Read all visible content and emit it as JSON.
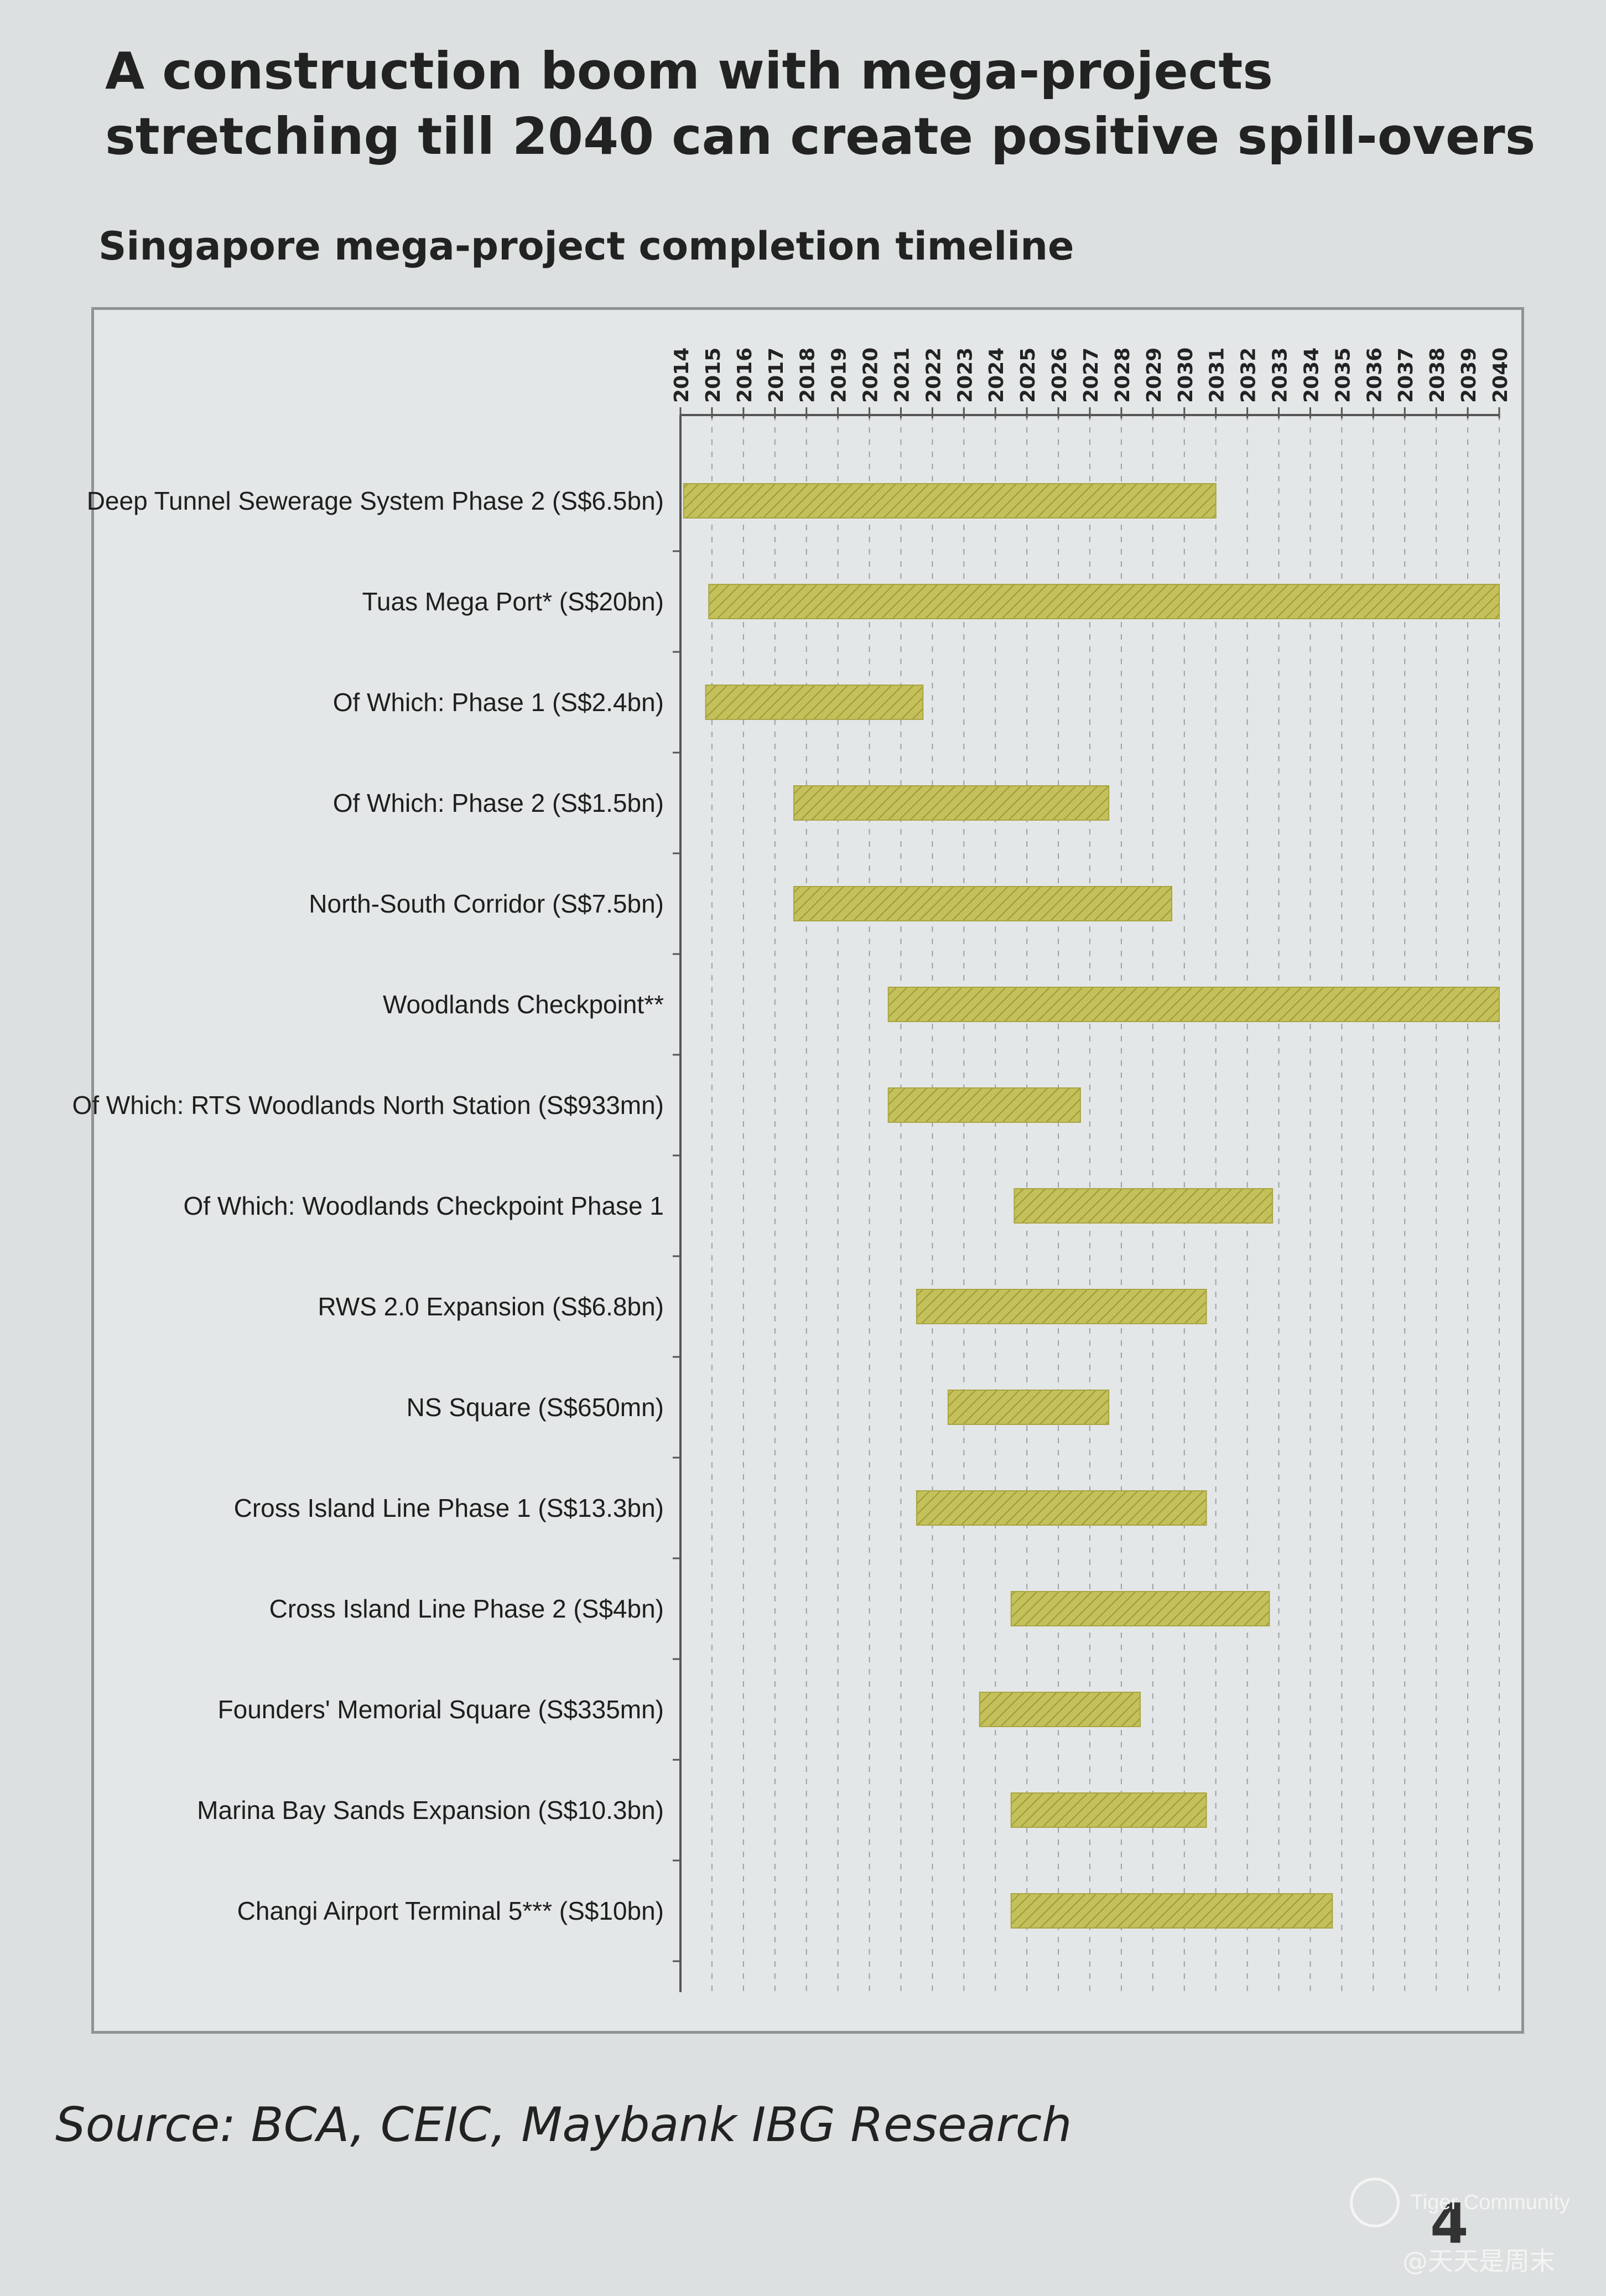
{
  "slide": {
    "title": "A construction boom with mega-projects stretching till 2040 can create positive spill-overs",
    "source": "Source: BCA, CEIC, Maybank IBG Research",
    "page_number": "4"
  },
  "watermark": {
    "brand": "Tiger Community",
    "user": "@天天是周末"
  },
  "colors": {
    "bar_fill": "#c4c05a",
    "bar_hatch": "#9e9a3c",
    "gridline": "#9aa0a0",
    "axis": "#555555"
  },
  "chart_data": {
    "type": "bar",
    "orientation": "horizontal-timeline",
    "title": "Singapore mega-project completion timeline",
    "years": [
      "2014",
      "2015",
      "2016",
      "2017",
      "2018",
      "2019",
      "2020",
      "2021",
      "2022",
      "2023",
      "2024",
      "2025",
      "2026",
      "2027",
      "2028",
      "2029",
      "2030",
      "2031",
      "2032",
      "2033",
      "2034",
      "2035",
      "2036",
      "2037",
      "2038",
      "2039",
      "2040"
    ],
    "xlim": [
      2014,
      2040
    ],
    "grid": true,
    "legend": "none",
    "bars": [
      {
        "label": "Deep Tunnel Sewerage System Phase 2 (S$6.5bn)",
        "start": 2014.1,
        "end": 2031.0
      },
      {
        "label": "Tuas Mega Port* (S$20bn)",
        "start": 2014.9,
        "end": 2040.0
      },
      {
        "label": "Of Which: Phase 1 (S$2.4bn)",
        "start": 2014.8,
        "end": 2021.7
      },
      {
        "label": "Of Which: Phase 2 (S$1.5bn)",
        "start": 2017.6,
        "end": 2027.6
      },
      {
        "label": "North-South Corridor (S$7.5bn)",
        "start": 2017.6,
        "end": 2029.6
      },
      {
        "label": "Woodlands Checkpoint**",
        "start": 2020.6,
        "end": 2040.0
      },
      {
        "label": "Of Which: RTS Woodlands North Station (S$933mn)",
        "start": 2020.6,
        "end": 2026.7
      },
      {
        "label": "Of Which: Woodlands Checkpoint Phase 1",
        "start": 2024.6,
        "end": 2032.8
      },
      {
        "label": "RWS 2.0 Expansion (S$6.8bn)",
        "start": 2021.5,
        "end": 2030.7
      },
      {
        "label": "NS Square (S$650mn)",
        "start": 2022.5,
        "end": 2027.6
      },
      {
        "label": "Cross Island Line Phase 1 (S$13.3bn)",
        "start": 2021.5,
        "end": 2030.7
      },
      {
        "label": "Cross Island Line Phase 2 (S$4bn)",
        "start": 2024.5,
        "end": 2032.7
      },
      {
        "label": "Founders' Memorial Square (S$335mn)",
        "start": 2023.5,
        "end": 2028.6
      },
      {
        "label": "Marina Bay Sands Expansion (S$10.3bn)",
        "start": 2024.5,
        "end": 2030.7
      },
      {
        "label": "Changi Airport Terminal 5*** (S$10bn)",
        "start": 2024.5,
        "end": 2034.7
      }
    ]
  }
}
